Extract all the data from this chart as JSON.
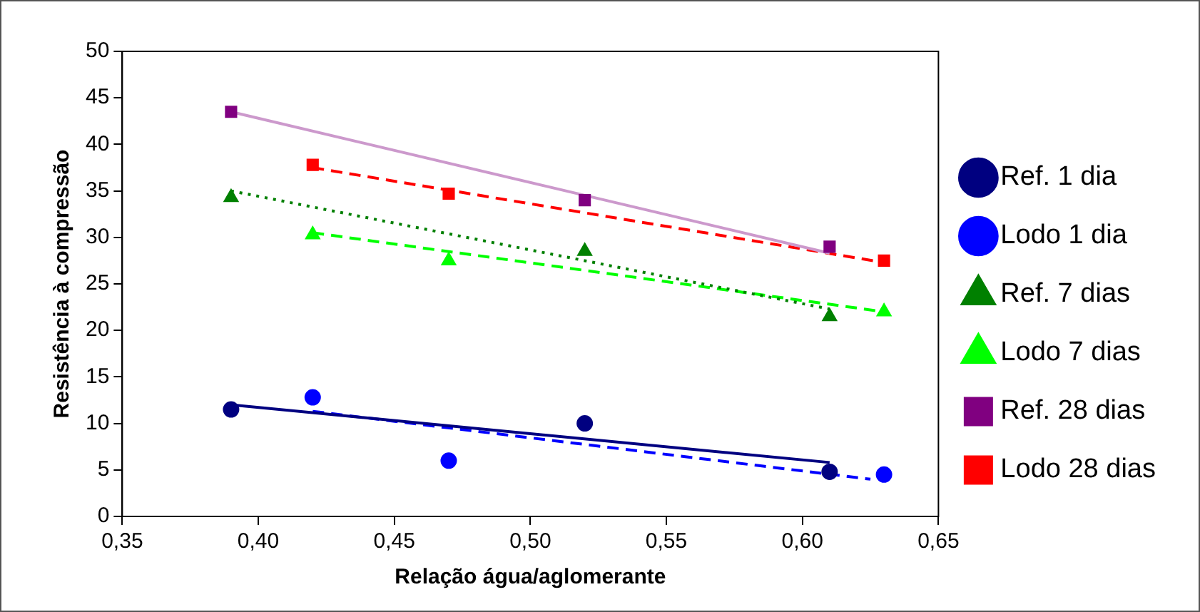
{
  "chart_data": {
    "type": "scatter",
    "xlabel": "Relação água/aglomerante",
    "ylabel": "Resistência à compressão",
    "xlim": [
      0.35,
      0.65
    ],
    "xticks": [
      {
        "value": 0.35,
        "label": "0,35"
      },
      {
        "value": 0.4,
        "label": "0,40"
      },
      {
        "value": 0.45,
        "label": "0,45"
      },
      {
        "value": 0.5,
        "label": "0,50"
      },
      {
        "value": 0.55,
        "label": "0,55"
      },
      {
        "value": 0.6,
        "label": "0,60"
      },
      {
        "value": 0.65,
        "label": "0,65"
      }
    ],
    "ylim": [
      0,
      50
    ],
    "yticks": [
      0,
      5,
      10,
      15,
      20,
      25,
      30,
      35,
      40,
      45,
      50
    ],
    "grid": false,
    "legend": "right",
    "series": [
      {
        "name": "Ref. 1 dia",
        "type": "scatter",
        "color": "#000080",
        "marker": "circle",
        "line_style": "solid",
        "x": [
          0.39,
          0.52,
          0.61
        ],
        "values": [
          11.5,
          10,
          4.8
        ]
      },
      {
        "name": "Lodo 1 dia",
        "type": "scatter",
        "color": "#0000ff",
        "marker": "circle",
        "line_style": "dashed",
        "x": [
          0.42,
          0.47,
          0.63
        ],
        "values": [
          12.8,
          6,
          4.5
        ]
      },
      {
        "name": "Ref. 7 dias",
        "type": "scatter",
        "color": "#008000",
        "marker": "triangle",
        "line_style": "dotted",
        "x": [
          0.39,
          0.52,
          0.61
        ],
        "values": [
          34.3,
          28.5,
          21.5
        ]
      },
      {
        "name": "Lodo 7 dias",
        "type": "scatter",
        "color": "#00ff00",
        "marker": "triangle",
        "line_style": "dashed",
        "x": [
          0.42,
          0.47,
          0.63
        ],
        "values": [
          30.3,
          27.5,
          22
        ]
      },
      {
        "name": "Ref. 28 dias",
        "type": "scatter",
        "color": "#800080",
        "marker": "square",
        "line_style": "solid",
        "x": [
          0.39,
          0.52,
          0.61
        ],
        "values": [
          43.5,
          34,
          29
        ]
      },
      {
        "name": "Lodo 28 dias",
        "type": "scatter",
        "color": "#ff0000",
        "marker": "square",
        "line_style": "dashed",
        "x": [
          0.42,
          0.47,
          0.63
        ],
        "values": [
          37.8,
          34.7,
          27.5
        ]
      },
      {
        "type": "line",
        "color": "#000080",
        "line_style": "solid",
        "x": [
          0.39,
          0.61
        ],
        "values": [
          12,
          5.8
        ]
      },
      {
        "type": "line",
        "color": "#0000ff",
        "line_style": "dashed",
        "x": [
          0.42,
          0.625
        ],
        "values": [
          11.3,
          4
        ]
      },
      {
        "type": "line",
        "color": "#008000",
        "line_style": "dotted",
        "x": [
          0.39,
          0.61
        ],
        "values": [
          35,
          22.3
        ]
      },
      {
        "type": "line",
        "color": "#00ff00",
        "line_style": "dashed",
        "x": [
          0.42,
          0.63
        ],
        "values": [
          30.5,
          22
        ]
      },
      {
        "type": "line",
        "color": "#cc99cc",
        "line_style": "solid",
        "x": [
          0.39,
          0.61
        ],
        "values": [
          43.5,
          28.3
        ]
      },
      {
        "type": "line",
        "color": "#ff0000",
        "line_style": "dashed",
        "x": [
          0.42,
          0.63
        ],
        "values": [
          37.5,
          27.3
        ]
      }
    ]
  }
}
